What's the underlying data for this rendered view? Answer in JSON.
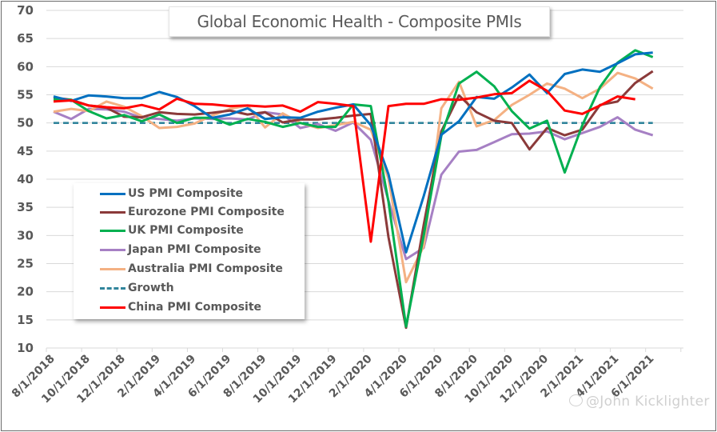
{
  "chart_data": {
    "type": "line",
    "title": "Global Economic Health - Composite PMIs",
    "xlabel": "",
    "ylabel": "",
    "ylim": [
      10,
      70
    ],
    "yticks": [
      70,
      65,
      60,
      55,
      50,
      45,
      40,
      35,
      30,
      25,
      20,
      15,
      10
    ],
    "grid": true,
    "legend_position": "lower-left",
    "x": [
      "8/1/2018",
      "9/1/2018",
      "10/1/2018",
      "11/1/2018",
      "12/1/2018",
      "1/1/2019",
      "2/1/2019",
      "3/1/2019",
      "4/1/2019",
      "5/1/2019",
      "6/1/2019",
      "7/1/2019",
      "8/1/2019",
      "9/1/2019",
      "10/1/2019",
      "11/1/2019",
      "12/1/2019",
      "1/1/2020",
      "2/1/2020",
      "3/1/2020",
      "4/1/2020",
      "5/1/2020",
      "6/1/2020",
      "7/1/2020",
      "8/1/2020",
      "9/1/2020",
      "10/1/2020",
      "11/1/2020",
      "12/1/2020",
      "1/1/2021",
      "2/1/2021",
      "3/1/2021",
      "4/1/2021",
      "5/1/2021",
      "6/1/2021"
    ],
    "xtick_labels": [
      "8/1/2018",
      "10/1/2018",
      "12/1/2018",
      "2/1/2019",
      "4/1/2019",
      "6/1/2019",
      "8/1/2019",
      "10/1/2019",
      "12/1/2019",
      "2/1/2020",
      "4/1/2020",
      "6/1/2020",
      "8/1/2020",
      "10/1/2020",
      "12/1/2020",
      "2/1/2021",
      "4/1/2021",
      "6/1/2021"
    ],
    "series": [
      {
        "name": "US PMI Composite",
        "color": "#0070c0",
        "dashed": false,
        "values": [
          54.7,
          53.9,
          54.9,
          54.7,
          54.4,
          54.4,
          55.5,
          54.6,
          53.0,
          50.9,
          51.5,
          52.6,
          50.7,
          51.0,
          50.9,
          52.0,
          52.7,
          53.3,
          49.6,
          40.9,
          27.0,
          37.0,
          47.9,
          50.3,
          54.6,
          54.3,
          56.3,
          58.6,
          55.3,
          58.7,
          59.5,
          59.1,
          60.6,
          62.2,
          62.5
        ]
      },
      {
        "name": "Eurozone PMI Composite",
        "color": "#8b3a3a",
        "dashed": false,
        "values": [
          54.5,
          54.1,
          53.1,
          52.7,
          51.1,
          51.0,
          51.9,
          51.6,
          51.5,
          51.8,
          52.2,
          51.5,
          51.9,
          50.1,
          50.6,
          50.6,
          50.9,
          51.3,
          51.6,
          29.7,
          13.6,
          31.9,
          48.5,
          54.9,
          51.9,
          50.4,
          50.0,
          45.3,
          49.1,
          47.8,
          48.8,
          53.2,
          53.8,
          57.1,
          59.2
        ]
      },
      {
        "name": "UK PMI Composite",
        "color": "#00b050",
        "dashed": false,
        "values": [
          54.2,
          54.1,
          52.1,
          50.8,
          51.4,
          50.3,
          51.5,
          50.0,
          50.9,
          50.9,
          49.7,
          50.7,
          50.2,
          49.3,
          50.0,
          49.3,
          49.3,
          53.3,
          53.0,
          36.0,
          13.8,
          30.0,
          47.7,
          57.0,
          59.1,
          56.5,
          52.1,
          49.0,
          50.4,
          41.2,
          49.6,
          56.4,
          60.7,
          62.9,
          61.7
        ]
      },
      {
        "name": "Japan PMI Composite",
        "color": "#a680c4",
        "dashed": false,
        "values": [
          52.0,
          50.7,
          52.5,
          52.4,
          52.0,
          50.9,
          50.7,
          50.4,
          50.8,
          50.7,
          50.8,
          50.6,
          51.9,
          51.5,
          49.1,
          49.8,
          48.6,
          50.1,
          47.0,
          36.2,
          25.8,
          27.8,
          40.8,
          44.9,
          45.2,
          46.6,
          48.0,
          48.1,
          48.5,
          47.1,
          48.2,
          49.3,
          51.0,
          48.8,
          47.8
        ]
      },
      {
        "name": "Australia PMI Composite",
        "color": "#f4b183",
        "dashed": false,
        "values": [
          52.0,
          52.5,
          52.1,
          53.8,
          52.9,
          51.2,
          49.1,
          49.3,
          49.9,
          51.3,
          52.5,
          53.1,
          49.2,
          51.7,
          50.0,
          49.1,
          49.6,
          50.2,
          48.8,
          40.1,
          21.7,
          28.1,
          52.6,
          57.3,
          49.4,
          50.5,
          53.2,
          55.0,
          57.0,
          56.1,
          54.4,
          56.1,
          58.9,
          57.9,
          56.1
        ]
      },
      {
        "name": "Growth",
        "color": "#31859c",
        "dashed": true,
        "values": [
          50,
          50,
          50,
          50,
          50,
          50,
          50,
          50,
          50,
          50,
          50,
          50,
          50,
          50,
          50,
          50,
          50,
          50,
          50,
          50,
          50,
          50,
          50,
          50,
          50,
          50,
          50,
          50,
          50,
          50,
          50,
          50,
          50,
          50,
          50
        ]
      },
      {
        "name": "China PMI Composite",
        "color": "#ff0000",
        "dashed": false,
        "values": [
          53.8,
          54.0,
          53.1,
          52.8,
          52.6,
          53.2,
          52.4,
          54.3,
          53.4,
          53.3,
          53.0,
          53.1,
          52.9,
          53.1,
          52.0,
          53.7,
          53.4,
          53.0,
          28.9,
          53.0,
          53.4,
          53.4,
          54.2,
          54.1,
          54.5,
          55.1,
          55.3,
          57.5,
          55.7,
          52.2,
          51.6,
          53.1,
          54.7,
          54.2,
          null
        ]
      }
    ]
  },
  "watermark": "@John Kicklighter"
}
